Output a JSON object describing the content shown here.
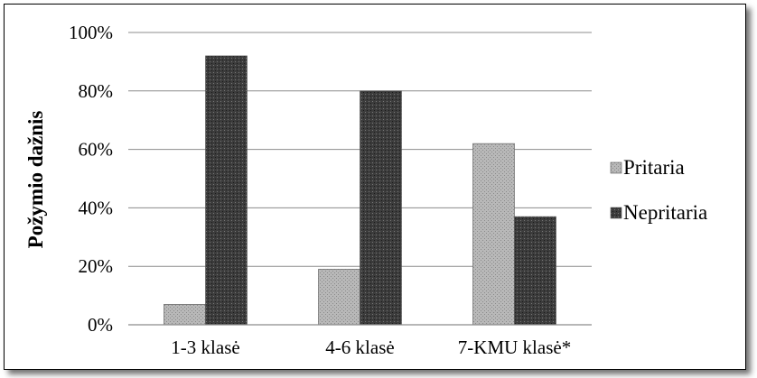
{
  "chart_data": {
    "type": "bar",
    "title": "",
    "xlabel": "",
    "ylabel": "Požymio dažnis",
    "categories": [
      "1-3 klasė",
      "4-6 klasė",
      "7-KMU klasė*"
    ],
    "series": [
      {
        "name": "Pritaria",
        "values": [
          7,
          19,
          62
        ],
        "color": "#b3b3b3"
      },
      {
        "name": "Nepritaria",
        "values": [
          92,
          80,
          37
        ],
        "color": "#3a3a3a"
      }
    ],
    "ylim": [
      0,
      100
    ],
    "yticks": [
      "0%",
      "20%",
      "40%",
      "60%",
      "80%",
      "100%"
    ],
    "grid": true,
    "legend_position": "right"
  }
}
